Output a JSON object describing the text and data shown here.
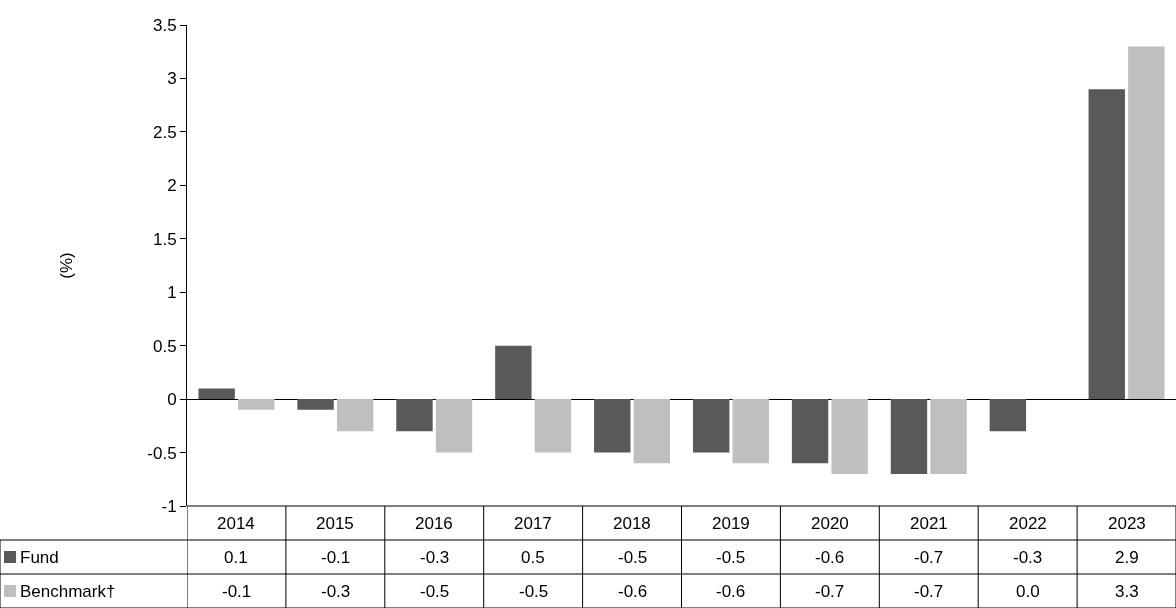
{
  "chart_data": {
    "type": "bar",
    "ylabel": "(%)",
    "categories": [
      "2014",
      "2015",
      "2016",
      "2017",
      "2018",
      "2019",
      "2020",
      "2021",
      "2022",
      "2023"
    ],
    "series": [
      {
        "name": "Fund",
        "color": "#595959",
        "values": [
          0.1,
          -0.1,
          -0.3,
          0.5,
          -0.5,
          -0.5,
          -0.6,
          -0.7,
          -0.3,
          2.9
        ],
        "value_labels": [
          "0.1",
          "-0.1",
          "-0.3",
          "0.5",
          "-0.5",
          "-0.5",
          "-0.6",
          "-0.7",
          "-0.3",
          "2.9"
        ]
      },
      {
        "name": "Benchmark†",
        "color": "#bfbfbf",
        "values": [
          -0.1,
          -0.3,
          -0.5,
          -0.5,
          -0.6,
          -0.6,
          -0.7,
          -0.7,
          0.0,
          3.3
        ],
        "value_labels": [
          "-0.1",
          "-0.3",
          "-0.5",
          "-0.5",
          "-0.6",
          "-0.6",
          "-0.7",
          "-0.7",
          "0.0",
          "3.3"
        ]
      }
    ],
    "ylim": [
      -1,
      3.5
    ],
    "yticks": [
      -1,
      -0.5,
      0,
      0.5,
      1,
      1.5,
      2,
      2.5,
      3,
      3.5
    ],
    "legend": "bottom left"
  }
}
